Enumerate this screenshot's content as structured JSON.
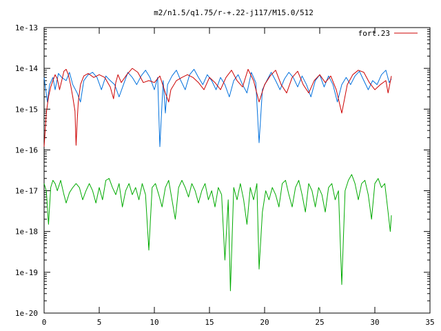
{
  "chart_data": {
    "type": "line",
    "title": "m2/n1.5/q1.75/r-+.22-j117/M15.0/512",
    "xlabel": "",
    "ylabel": "",
    "xlim": [
      0,
      35
    ],
    "ylim": [
      1e-20,
      1e-13
    ],
    "yscale": "log",
    "grid": false,
    "legend_position": "top-right",
    "x_ticks": [
      0,
      5,
      10,
      15,
      20,
      25,
      30,
      35
    ],
    "x_tick_labels": [
      "0",
      "5",
      "10",
      "15",
      "20",
      "25",
      "30",
      "35"
    ],
    "y_ticks": [
      1e-20,
      1e-19,
      1e-18,
      1e-17,
      1e-16,
      1e-15,
      1e-14,
      1e-13
    ],
    "y_tick_labels": [
      "1e-20",
      "1e-19",
      "1e-18",
      "1e-17",
      "1e-16",
      "1e-15",
      "1e-14",
      "1e-13"
    ],
    "series": [
      {
        "name": "fort.23",
        "color": "#cc0000",
        "x": [
          0.0,
          0.1,
          0.2,
          0.4,
          0.6,
          0.8,
          1.0,
          1.2,
          1.4,
          1.6,
          1.8,
          2.0,
          2.2,
          2.4,
          2.6,
          2.8,
          2.9,
          3.0,
          3.1,
          3.3,
          3.6,
          4.0,
          4.5,
          5.0,
          5.5,
          6.0,
          6.3,
          6.5,
          6.7,
          7.0,
          7.5,
          8.0,
          8.5,
          9.0,
          9.5,
          10.0,
          10.5,
          11.0,
          11.3,
          11.5,
          12.0,
          12.5,
          13.0,
          13.5,
          14.0,
          14.5,
          15.0,
          15.5,
          16.0,
          16.5,
          17.0,
          17.5,
          18.0,
          18.5,
          19.0,
          19.5,
          20.0,
          20.5,
          21.0,
          21.5,
          22.0,
          22.5,
          23.0,
          23.5,
          24.0,
          24.5,
          25.0,
          25.5,
          26.0,
          26.5,
          27.0,
          27.5,
          28.0,
          28.5,
          29.0,
          29.5,
          30.0,
          30.5,
          31.0,
          31.2,
          31.5
        ],
        "y": [
          1.2e-16,
          3e-16,
          8e-16,
          2e-15,
          3.5e-15,
          5e-15,
          7e-15,
          5.5e-15,
          3e-15,
          5e-15,
          8.5e-15,
          9.5e-15,
          7e-15,
          4e-15,
          2e-15,
          9e-16,
          1.3e-16,
          5e-16,
          1.5e-15,
          4e-15,
          6.5e-15,
          7.5e-15,
          6e-15,
          7e-15,
          6e-15,
          3.5e-15,
          1.8e-15,
          4.5e-15,
          7e-15,
          4.5e-15,
          7e-15,
          1e-14,
          8e-15,
          4.5e-15,
          5e-15,
          4.5e-15,
          6.5e-15,
          2.5e-15,
          1.5e-15,
          3e-15,
          5e-15,
          6e-15,
          7e-15,
          6e-15,
          4.5e-15,
          3e-15,
          6e-15,
          4.5e-15,
          3e-15,
          6e-15,
          9e-15,
          5e-15,
          3.5e-15,
          9.5e-15,
          5e-15,
          1.5e-15,
          4e-15,
          6.5e-15,
          9e-15,
          4e-15,
          2.5e-15,
          6e-15,
          8.5e-15,
          4e-15,
          2.5e-15,
          5e-15,
          7e-15,
          4.5e-15,
          6.5e-15,
          3e-15,
          8e-16,
          4e-15,
          7e-15,
          9e-15,
          8e-15,
          4.5e-15,
          3e-15,
          4e-15,
          5e-15,
          2.5e-15,
          6.5e-15
        ]
      },
      {
        "name": "",
        "color": "#0070dd",
        "x": [
          0.0,
          0.15,
          0.3,
          0.5,
          0.8,
          1.0,
          1.3,
          1.6,
          2.0,
          2.3,
          2.6,
          3.0,
          3.3,
          3.6,
          4.0,
          4.4,
          4.8,
          5.2,
          5.6,
          6.0,
          6.4,
          6.8,
          7.2,
          7.6,
          8.0,
          8.4,
          8.8,
          9.2,
          9.6,
          10.0,
          10.3,
          10.5,
          10.8,
          11.0,
          11.2,
          11.6,
          12.0,
          12.4,
          12.8,
          13.2,
          13.6,
          14.0,
          14.4,
          14.8,
          15.2,
          15.6,
          16.0,
          16.4,
          16.8,
          17.2,
          17.6,
          18.0,
          18.4,
          18.8,
          19.2,
          19.5,
          19.8,
          20.2,
          20.6,
          21.0,
          21.4,
          21.8,
          22.2,
          22.6,
          23.0,
          23.4,
          23.8,
          24.2,
          24.6,
          25.0,
          25.4,
          25.8,
          26.2,
          26.6,
          27.0,
          27.4,
          27.8,
          28.2,
          28.6,
          29.0,
          29.4,
          29.8,
          30.2,
          30.6,
          31.0,
          31.3,
          31.5
        ],
        "y": [
          6e-15,
          3e-15,
          1.5e-15,
          4e-15,
          6e-15,
          3e-15,
          7.5e-15,
          6e-15,
          5e-15,
          8e-15,
          4e-15,
          2.5e-15,
          1.5e-15,
          5e-15,
          7e-15,
          8e-15,
          6e-15,
          3e-15,
          6.5e-15,
          5e-15,
          4e-15,
          2e-15,
          4e-15,
          8e-15,
          6e-15,
          4e-15,
          6.5e-15,
          9e-15,
          6e-15,
          3e-15,
          6e-15,
          1.2e-16,
          5e-15,
          8e-16,
          4e-15,
          6.5e-15,
          9e-15,
          5e-15,
          3e-15,
          7e-15,
          9.5e-15,
          6e-15,
          4e-15,
          7e-15,
          5e-15,
          3e-15,
          6e-15,
          4e-15,
          2e-15,
          5e-15,
          7e-15,
          4e-15,
          2.5e-15,
          8e-15,
          4.5e-15,
          1.5e-16,
          3e-15,
          5e-15,
          8e-15,
          5e-15,
          3e-15,
          5.5e-15,
          8e-15,
          6e-15,
          3.5e-15,
          6.5e-15,
          4e-15,
          2e-15,
          5e-15,
          7e-15,
          3.5e-15,
          6.5e-15,
          4e-15,
          1.5e-15,
          4e-15,
          6e-15,
          4e-15,
          6.5e-15,
          8.5e-15,
          5e-15,
          3e-15,
          5e-15,
          4e-15,
          7e-15,
          9e-15,
          4.5e-15,
          5.5e-15
        ]
      },
      {
        "name": "",
        "color": "#00aa00",
        "x": [
          0.0,
          0.2,
          0.4,
          0.6,
          0.8,
          1.0,
          1.2,
          1.5,
          1.8,
          2.0,
          2.3,
          2.6,
          2.9,
          3.2,
          3.5,
          3.8,
          4.1,
          4.4,
          4.7,
          5.0,
          5.3,
          5.6,
          5.9,
          6.2,
          6.5,
          6.8,
          7.1,
          7.4,
          7.7,
          8.0,
          8.3,
          8.6,
          8.9,
          9.2,
          9.5,
          9.8,
          10.1,
          10.4,
          10.7,
          11.0,
          11.3,
          11.6,
          11.9,
          12.2,
          12.5,
          12.8,
          13.1,
          13.4,
          13.7,
          14.0,
          14.3,
          14.6,
          14.9,
          15.2,
          15.5,
          15.8,
          16.1,
          16.4,
          16.7,
          16.9,
          17.2,
          17.5,
          17.8,
          18.1,
          18.4,
          18.7,
          19.0,
          19.3,
          19.5,
          19.8,
          20.1,
          20.4,
          20.7,
          21.0,
          21.3,
          21.6,
          21.9,
          22.2,
          22.5,
          22.8,
          23.1,
          23.4,
          23.7,
          24.0,
          24.3,
          24.6,
          24.9,
          25.2,
          25.5,
          25.8,
          26.1,
          26.4,
          26.7,
          27.0,
          27.3,
          27.6,
          27.9,
          28.2,
          28.5,
          28.8,
          29.1,
          29.4,
          29.7,
          30.0,
          30.3,
          30.6,
          30.9,
          31.2,
          31.4,
          31.5
        ],
        "y": [
          1.5e-17,
          1e-17,
          1.5e-18,
          1.2e-17,
          1.8e-17,
          1.5e-17,
          1e-17,
          1.8e-17,
          8e-18,
          5e-18,
          9e-18,
          1.2e-17,
          1.5e-17,
          1.2e-17,
          6e-18,
          1e-17,
          1.5e-17,
          1e-17,
          5e-18,
          1.2e-17,
          6e-18,
          1.8e-17,
          2e-17,
          1.2e-17,
          8e-18,
          1.5e-17,
          4e-18,
          1e-17,
          1.5e-17,
          8e-18,
          1.2e-17,
          6e-18,
          1.5e-17,
          8e-18,
          3.5e-19,
          1.2e-17,
          1.5e-17,
          8e-18,
          4e-18,
          1.2e-17,
          1.8e-17,
          6e-18,
          2e-18,
          1.2e-17,
          1.8e-17,
          1.2e-17,
          7e-18,
          1.5e-17,
          1e-17,
          5e-18,
          1e-17,
          1.5e-17,
          6e-18,
          1e-17,
          4e-18,
          1.2e-17,
          8e-18,
          2e-19,
          6e-18,
          3.5e-20,
          1.2e-17,
          6e-18,
          1.5e-17,
          6e-18,
          1.5e-18,
          1.2e-17,
          6e-18,
          1.5e-17,
          1.2e-19,
          3e-18,
          1e-17,
          6e-18,
          1.2e-17,
          8e-18,
          4e-18,
          1.5e-17,
          1.8e-17,
          8e-18,
          4e-18,
          1.2e-17,
          1.8e-17,
          8e-18,
          3e-18,
          1.5e-17,
          1e-17,
          4e-18,
          1.2e-17,
          8e-18,
          3e-18,
          1.2e-17,
          1.5e-17,
          6e-18,
          1e-17,
          5e-20,
          1e-17,
          1.8e-17,
          2.5e-17,
          1.5e-17,
          6e-18,
          1.5e-17,
          1.8e-17,
          8e-18,
          2e-18,
          1.5e-17,
          2e-17,
          1.2e-17,
          1.5e-17,
          3e-18,
          1e-18,
          2.5e-18
        ]
      }
    ]
  }
}
